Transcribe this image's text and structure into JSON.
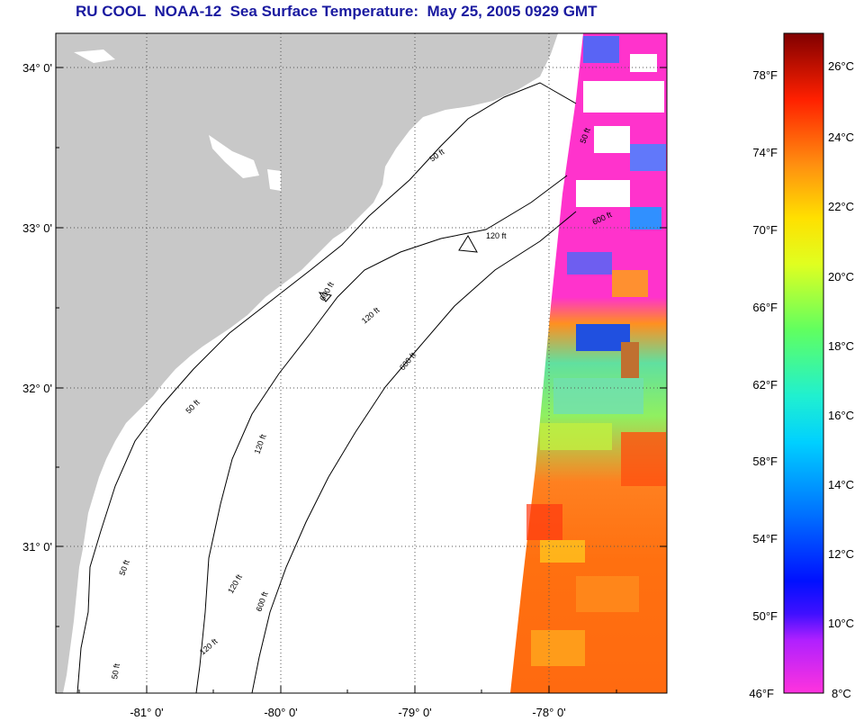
{
  "title": "RU COOL  NOAA-12  Sea Surface Temperature:  May 25, 2005 0929 GMT",
  "latitude_labels": [
    "34° 0'",
    "33° 0'",
    "32° 0'",
    "31° 0'"
  ],
  "longitude_labels": [
    "-81° 0'",
    "-80° 0'",
    "-79° 0'",
    "-78° 0'"
  ],
  "contour_labels": [
    "50 ft",
    "50 ft",
    "50 ft",
    "50 ft",
    "50 ft",
    "120 ft",
    "120 ft",
    "120 ft",
    "120 ft",
    "120 ft",
    "600 ft",
    "600 ft",
    "600 ft",
    "600 ft"
  ],
  "colorbar": {
    "fahrenheit_labels": [
      "78°F",
      "74°F",
      "70°F",
      "66°F",
      "62°F",
      "58°F",
      "54°F",
      "50°F",
      "46°F"
    ],
    "celsius_labels": [
      "26°C",
      "24°C",
      "22°C",
      "20°C",
      "18°C",
      "16°C",
      "14°C",
      "12°C",
      "10°C",
      "8°C"
    ]
  },
  "colors": {
    "title": "#1a1aa0",
    "land": "#c8c8c8",
    "ocean": "#ffffff",
    "cloud": "#ff33cc"
  }
}
